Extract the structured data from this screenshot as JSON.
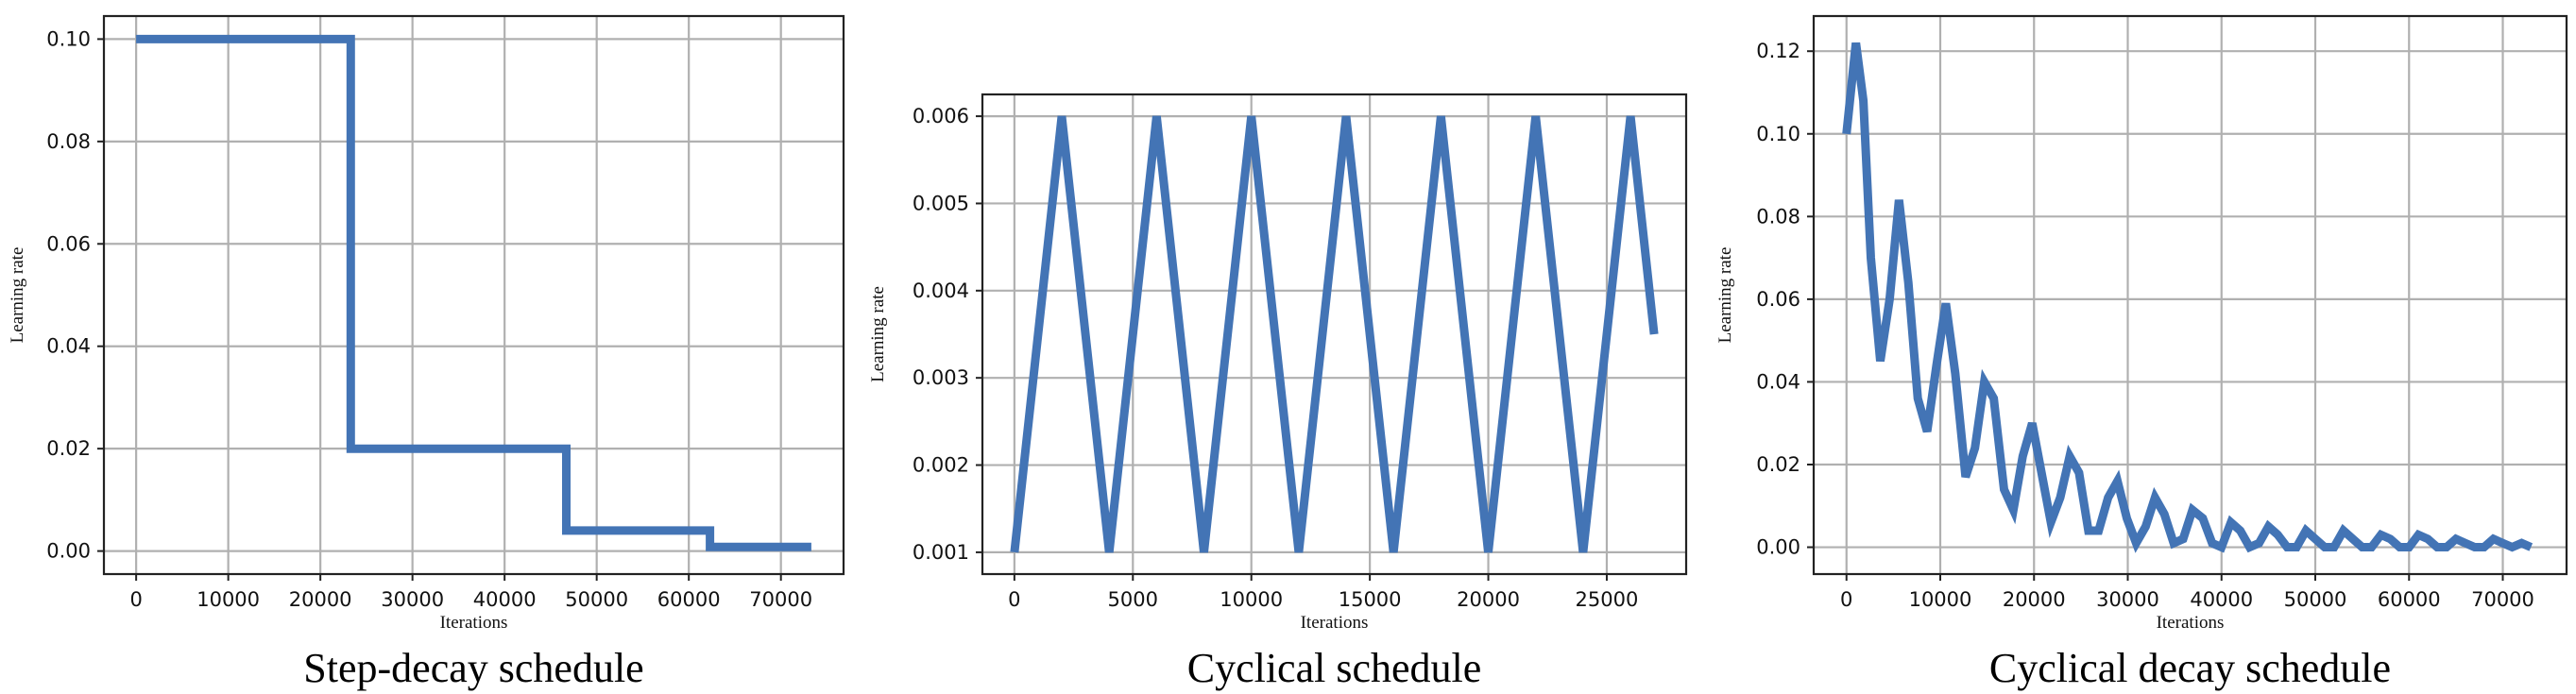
{
  "chart_data": [
    {
      "type": "line",
      "caption": "Step-decay schedule",
      "xlabel": "Iterations",
      "ylabel": "Learning rate",
      "grid": true,
      "line_color": "#4374b5",
      "xlim": [
        -3500,
        76800
      ],
      "ylim": [
        -0.0045,
        0.1045
      ],
      "xticks": [
        0,
        10000,
        20000,
        30000,
        40000,
        50000,
        60000,
        70000
      ],
      "xtick_labels": [
        "0",
        "10000",
        "20000",
        "30000",
        "40000",
        "50000",
        "60000",
        "70000"
      ],
      "yticks": [
        0.0,
        0.02,
        0.04,
        0.06,
        0.08,
        0.1
      ],
      "ytick_labels": [
        "0.00",
        "0.02",
        "0.04",
        "0.06",
        "0.08",
        "0.10"
      ],
      "x": [
        0,
        23300,
        23300,
        46700,
        46700,
        62300,
        62300,
        73300
      ],
      "y": [
        0.1,
        0.1,
        0.02,
        0.02,
        0.004,
        0.004,
        0.0008,
        0.0008
      ]
    },
    {
      "type": "line",
      "caption": "Cyclical schedule",
      "xlabel": "Iterations",
      "ylabel": "Learning rate",
      "grid": true,
      "line_color": "#4374b5",
      "xlim": [
        -1350,
        28350
      ],
      "ylim": [
        0.00075,
        0.00625
      ],
      "xticks": [
        0,
        5000,
        10000,
        15000,
        20000,
        25000
      ],
      "xtick_labels": [
        "0",
        "5000",
        "10000",
        "15000",
        "20000",
        "25000"
      ],
      "yticks": [
        0.001,
        0.002,
        0.003,
        0.004,
        0.005,
        0.006
      ],
      "ytick_labels": [
        "0.001",
        "0.002",
        "0.003",
        "0.004",
        "0.005",
        "0.006"
      ],
      "x": [
        0,
        2000,
        4000,
        6000,
        8000,
        10000,
        12000,
        14000,
        16000,
        18000,
        20000,
        22000,
        24000,
        26000,
        27000
      ],
      "y": [
        0.001,
        0.006,
        0.001,
        0.006,
        0.001,
        0.006,
        0.001,
        0.006,
        0.001,
        0.006,
        0.001,
        0.006,
        0.001,
        0.006,
        0.0035
      ]
    },
    {
      "type": "line",
      "caption": "Cyclical decay schedule",
      "xlabel": "Iterations",
      "ylabel": "Learning rate",
      "grid": true,
      "line_color": "#4374b5",
      "xlim": [
        -3500,
        76800
      ],
      "ylim": [
        -0.0065,
        0.1285
      ],
      "xticks": [
        0,
        10000,
        20000,
        30000,
        40000,
        50000,
        60000,
        70000
      ],
      "xtick_labels": [
        "0",
        "10000",
        "20000",
        "30000",
        "40000",
        "50000",
        "60000",
        "70000"
      ],
      "yticks": [
        0.0,
        0.02,
        0.04,
        0.06,
        0.08,
        0.1,
        0.12
      ],
      "ytick_labels": [
        "0.00",
        "0.02",
        "0.04",
        "0.06",
        "0.08",
        "0.10",
        "0.12"
      ],
      "x": [
        0,
        1000,
        1800,
        2600,
        3600,
        4600,
        5600,
        6600,
        7600,
        8600,
        9600,
        10600,
        11600,
        12700,
        13700,
        14700,
        15700,
        16800,
        17800,
        18800,
        19800,
        20800,
        21800,
        22800,
        23800,
        24800,
        25800,
        26900,
        27900,
        28900,
        29900,
        30900,
        31900,
        32900,
        33900,
        34900,
        35900,
        36900,
        38000,
        39000,
        40000,
        41000,
        42000,
        43000,
        44000,
        45000,
        46000,
        47000,
        48000,
        49000,
        50000,
        51000,
        52000,
        53000,
        54000,
        55000,
        56000,
        57000,
        58000,
        59000,
        60000,
        61000,
        62000,
        63000,
        64000,
        65000,
        66000,
        67000,
        68000,
        69000,
        70000,
        71000,
        72000,
        73000
      ],
      "y": [
        0.1,
        0.122,
        0.108,
        0.07,
        0.045,
        0.06,
        0.084,
        0.064,
        0.036,
        0.028,
        0.044,
        0.059,
        0.042,
        0.017,
        0.024,
        0.04,
        0.036,
        0.014,
        0.009,
        0.022,
        0.03,
        0.018,
        0.006,
        0.012,
        0.022,
        0.018,
        0.004,
        0.004,
        0.012,
        0.016,
        0.007,
        0.001,
        0.005,
        0.012,
        0.008,
        0.001,
        0.002,
        0.009,
        0.007,
        0.001,
        0.0,
        0.006,
        0.004,
        0.0,
        0.001,
        0.005,
        0.003,
        0.0,
        0.0,
        0.004,
        0.002,
        0.0,
        0.0,
        0.004,
        0.002,
        0.0,
        0.0,
        0.003,
        0.002,
        0.0,
        0.0,
        0.003,
        0.002,
        0.0,
        0.0,
        0.002,
        0.001,
        0.0,
        0.0,
        0.002,
        0.001,
        0.0,
        0.001,
        0.0
      ]
    }
  ]
}
